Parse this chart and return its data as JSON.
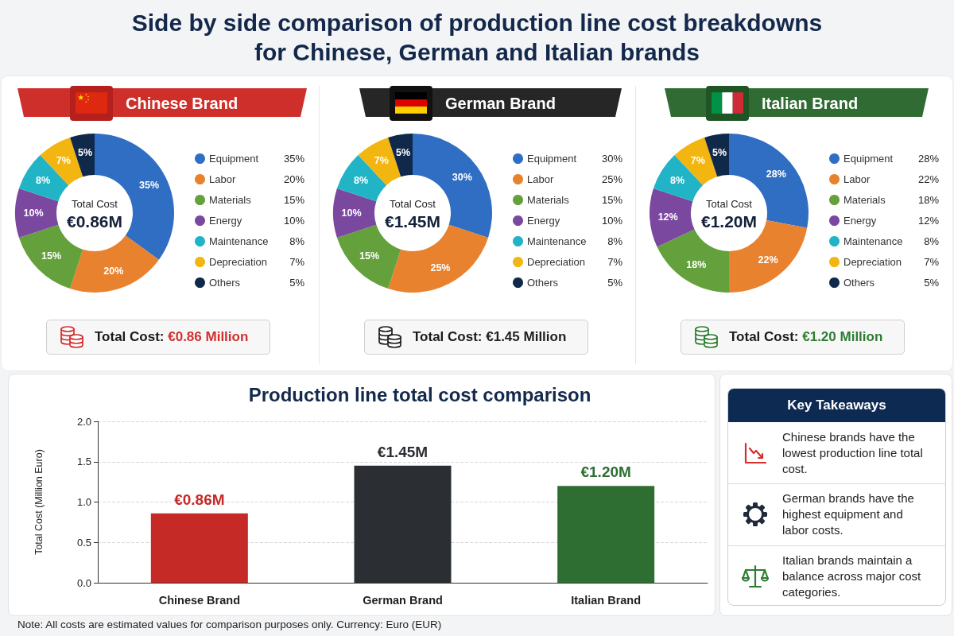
{
  "chart_data": [
    {
      "type": "other",
      "title": "Side by side comparison of production line cost breakdowns for Chinese, German and Italian brands"
    },
    {
      "type": "donut",
      "title": "Chinese Brand",
      "categories": [
        "Equipment",
        "Labor",
        "Materials",
        "Energy",
        "Maintenance",
        "Depreciation",
        "Others"
      ],
      "values": [
        35,
        20,
        15,
        10,
        8,
        7,
        5
      ],
      "colors": [
        "#2f6ec2",
        "#e8822f",
        "#64a03c",
        "#7b48a0",
        "#21b3c6",
        "#f3b50f",
        "#10284a"
      ],
      "value_labels": [
        "35%",
        "20%",
        "15%",
        "10%",
        "8%",
        "7%",
        "5%"
      ],
      "legend": "right",
      "annotations": [
        "Total Cost",
        "€0.86M",
        "Total Cost: €0.86 Million"
      ]
    },
    {
      "type": "donut",
      "title": "German Brand",
      "categories": [
        "Equipment",
        "Labor",
        "Materials",
        "Energy",
        "Maintenance",
        "Depreciation",
        "Others"
      ],
      "values": [
        30,
        25,
        15,
        10,
        8,
        7,
        5
      ],
      "colors": [
        "#2f6ec2",
        "#e8822f",
        "#64a03c",
        "#7b48a0",
        "#21b3c6",
        "#f3b50f",
        "#10284a"
      ],
      "value_labels": [
        "30%",
        "25%",
        "15%",
        "10%",
        "8%",
        "7%",
        "5%"
      ],
      "legend": "right",
      "annotations": [
        "Total Cost",
        "€1.45M",
        "Total Cost: €1.45 Million"
      ]
    },
    {
      "type": "donut",
      "title": "Italian Brand",
      "categories": [
        "Equipment",
        "Labor",
        "Materials",
        "Energy",
        "Maintenance",
        "Depreciation",
        "Others"
      ],
      "values": [
        28,
        22,
        18,
        12,
        8,
        7,
        5
      ],
      "colors": [
        "#2f6ec2",
        "#e8822f",
        "#64a03c",
        "#7b48a0",
        "#21b3c6",
        "#f3b50f",
        "#10284a"
      ],
      "value_labels": [
        "28%",
        "22%",
        "18%",
        "12%",
        "8%",
        "7%",
        "5%"
      ],
      "legend": "right",
      "annotations": [
        "Total Cost",
        "€1.20M",
        "Total Cost: €1.20 Million"
      ]
    },
    {
      "type": "bar",
      "title": "Production line total cost comparison",
      "categories": [
        "Chinese Brand",
        "German Brand",
        "Italian Brand"
      ],
      "values": [
        0.86,
        1.45,
        1.2
      ],
      "colors": [
        "#c52a27",
        "#2b2e33",
        "#2f6e33"
      ],
      "value_labels": [
        "€0.86M",
        "€1.45M",
        "€1.20M"
      ],
      "ylabel": "Total Cost (Million Euro)",
      "ylim": [
        0,
        2
      ],
      "yticks": [
        {
          "value": 0,
          "label": "0.0"
        },
        0.5,
        {
          "value": 1,
          "label": "1.0"
        },
        1.5,
        {
          "value": 2,
          "label": "2.0"
        }
      ],
      "grid": "y",
      "annotations": [
        "Note: All costs are estimated values for comparison purposes only. Currency: Euro (EUR)"
      ]
    },
    {
      "type": "other",
      "title": "Key Takeaways",
      "annotations": [
        "Chinese brands have the lowest production line total cost.",
        "German brands have the highest equipment and labor costs.",
        "Italian brands maintain a balance across major cost categories."
      ]
    }
  ]
}
